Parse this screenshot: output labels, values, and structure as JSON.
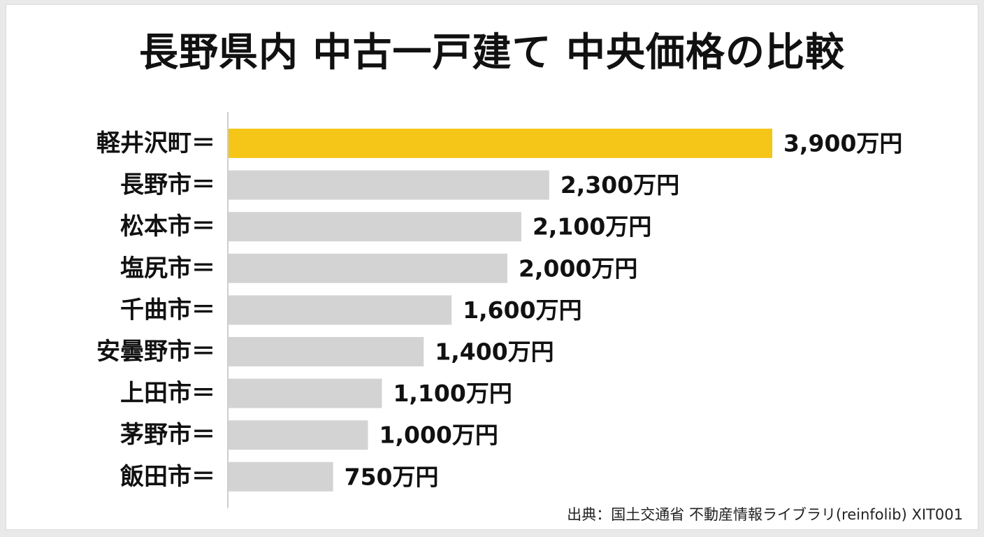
{
  "chart_data": {
    "type": "bar",
    "orientation": "horizontal",
    "title": "長野県内 中古一戸建て 中央価格の比較",
    "categories": [
      "軽井沢町",
      "長野市",
      "松本市",
      "塩尻市",
      "千曲市",
      "安曇野市",
      "上田市",
      "茅野市",
      "飯田市"
    ],
    "category_suffix": "＝",
    "values": [
      3900,
      2300,
      2100,
      2000,
      1600,
      1400,
      1100,
      1000,
      750
    ],
    "value_labels": [
      "3,900万円",
      "2,300万円",
      "2,100万円",
      "2,000万円",
      "1,600万円",
      "1,400万円",
      "1,100万円",
      "1,000万円",
      "750万円"
    ],
    "unit": "万円",
    "highlight_index": 0,
    "colors": {
      "highlight": "#f5c518",
      "bar": "#d3d3d3",
      "axis": "#bdbdbd",
      "text": "#111111"
    },
    "grid": false,
    "legend": "none"
  },
  "source_note": "出典：国土交通省 不動産情報ライブラリ(reinfolib) XIT001"
}
